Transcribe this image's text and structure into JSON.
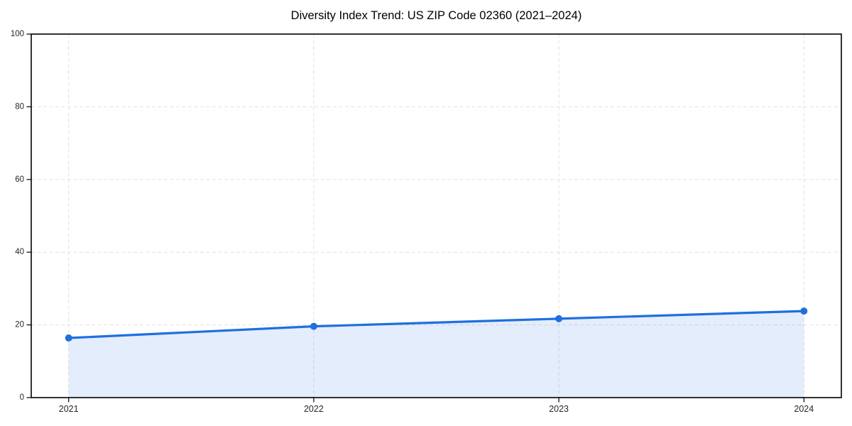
{
  "chart_data": {
    "type": "line",
    "title": "Diversity Index Trend: US ZIP Code 02360 (2021–2024)",
    "categories": [
      "2021",
      "2022",
      "2023",
      "2024"
    ],
    "series": [
      {
        "name": "Diversity Index",
        "values": [
          16.4,
          19.6,
          21.7,
          23.8
        ]
      }
    ],
    "xlabel": "",
    "ylabel": "",
    "ylim": [
      0,
      100
    ],
    "yticks": [
      0,
      20,
      40,
      60,
      80,
      100
    ],
    "grid": true,
    "grid_style": "dashed",
    "legend": false,
    "area_fill": true,
    "marker": "circle",
    "colors": {
      "line": "#1f6fe0",
      "area": "#1f6fe0",
      "area_opacity": 0.12,
      "grid": "#e1e1e1",
      "spine": "#000000",
      "tick_label": "#262626",
      "title": "#000000",
      "background": "#ffffff"
    }
  }
}
